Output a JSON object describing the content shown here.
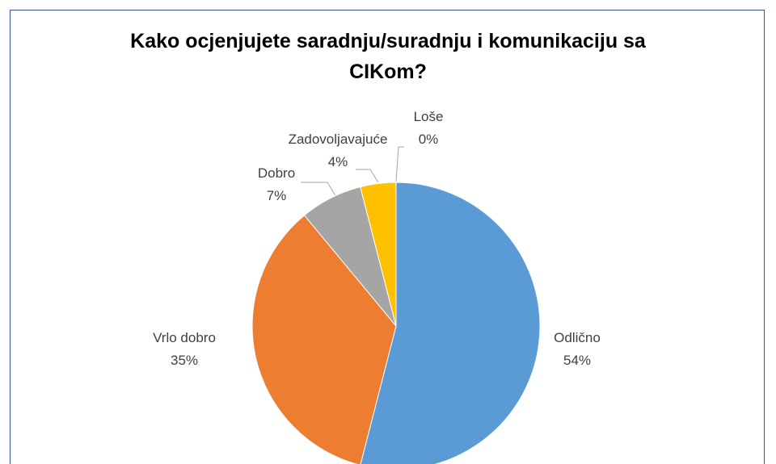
{
  "chart_data": {
    "type": "pie",
    "title": "Kako ocjenjujete saradnju/suradnju i komunikaciju sa CIKom?",
    "categories": [
      "Odlično",
      "Vrlo dobro",
      "Dobro",
      "Zadovoljavajuće",
      "Loše"
    ],
    "values": [
      54,
      35,
      7,
      4,
      0
    ],
    "value_labels": [
      "54%",
      "35%",
      "7%",
      "4%",
      "0%"
    ],
    "colors": [
      "#5b9bd5",
      "#ed7d31",
      "#a5a5a5",
      "#ffc000",
      "#4472c4"
    ]
  }
}
